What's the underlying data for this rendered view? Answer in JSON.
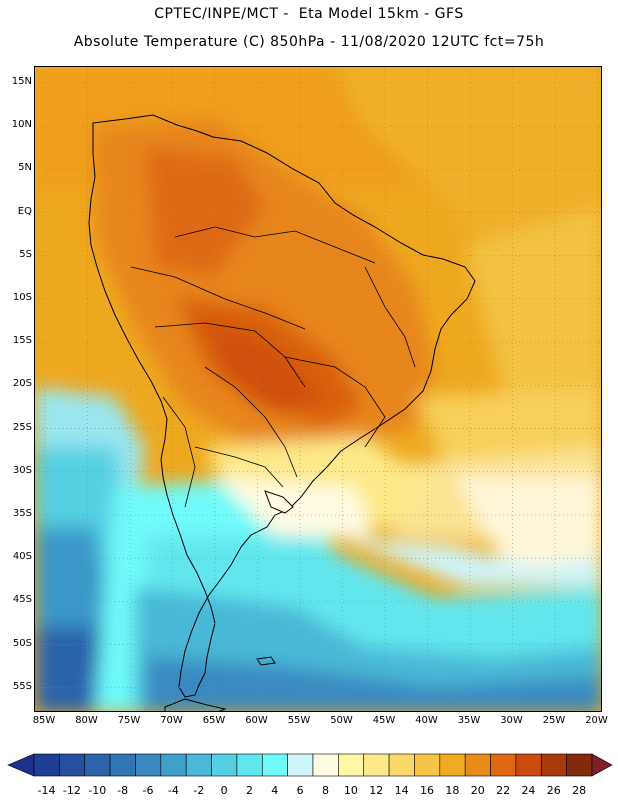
{
  "header": {
    "line1": "CPTEC/INPE/MCT -  Eta Model 15km - GFS",
    "line2": "Absolute Temperature (C) 850hPa - 11/08/2020 12UTC fct=75h"
  },
  "map": {
    "lat_labels": [
      "15N",
      "10N",
      "5N",
      "EQ",
      "5S",
      "10S",
      "15S",
      "20S",
      "25S",
      "30S",
      "35S",
      "40S",
      "45S",
      "50S",
      "55S"
    ],
    "lon_labels": [
      "85W",
      "80W",
      "75W",
      "70W",
      "65W",
      "60W",
      "55W",
      "50W",
      "45W",
      "40W",
      "35W",
      "30W",
      "25W",
      "20W"
    ],
    "variable": "Absolute Temperature (C) 850hPa",
    "region": "South America"
  },
  "colorbar": {
    "labels": [
      "-14",
      "-12",
      "-10",
      "-8",
      "-6",
      "-4",
      "-2",
      "0",
      "2",
      "4",
      "6",
      "8",
      "10",
      "12",
      "14",
      "16",
      "18",
      "20",
      "22",
      "24",
      "26",
      "28"
    ],
    "colors": {
      "under": "#1f2f8f",
      "bins": [
        "#1f3e95",
        "#25509f",
        "#2c63ab",
        "#3376b6",
        "#3a89c0",
        "#41a0ca",
        "#4ab8d6",
        "#55d0e2",
        "#62e6ee",
        "#6ffaf9",
        "#cff5fa",
        "#fffbe3",
        "#fff7a6",
        "#fde98a",
        "#fbd868",
        "#f6c547",
        "#efac20",
        "#e88c19",
        "#df6812",
        "#cb4a0d",
        "#a83a0c",
        "#842a0c"
      ],
      "over": "#7e1f2a"
    }
  }
}
